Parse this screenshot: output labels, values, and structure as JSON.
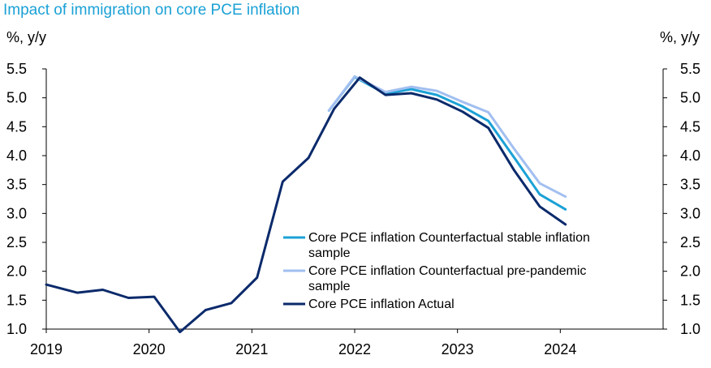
{
  "chart_data": {
    "type": "line",
    "title": "Impact of immigration on core PCE inflation",
    "ylabel_left": "%, y/y",
    "ylabel_right": "%, y/y",
    "ylim": [
      1.0,
      5.5
    ],
    "xlim": [
      2019,
      2025
    ],
    "y_ticks": [
      "1.0",
      "1.5",
      "2.0",
      "2.5",
      "3.0",
      "3.5",
      "4.0",
      "4.5",
      "5.0",
      "5.5"
    ],
    "x_ticks": [
      "2019",
      "2020",
      "2021",
      "2022",
      "2023",
      "2024"
    ],
    "grid": false,
    "legend_position": "lower-right",
    "series": [
      {
        "name": "Core PCE inflation Counterfactual stable inflation sample",
        "legend_lines": [
          "Core PCE inflation Counterfactual stable inflation",
          "sample"
        ],
        "color": "#1ba1d6",
        "x": [
          2021.75,
          2022.0,
          2022.3,
          2022.55,
          2022.8,
          2023.05,
          2023.3,
          2023.55,
          2023.8,
          2024.05
        ],
        "y": [
          4.78,
          5.36,
          5.07,
          5.15,
          5.05,
          4.85,
          4.6,
          3.97,
          3.33,
          3.07
        ]
      },
      {
        "name": "Core PCE inflation Counterfactual pre-pandemic sample",
        "legend_lines": [
          "Core PCE inflation Counterfactual pre-pandemic",
          "sample"
        ],
        "color": "#a2bff0",
        "x": [
          2021.75,
          2022.0,
          2022.3,
          2022.55,
          2022.8,
          2023.05,
          2023.3,
          2023.55,
          2023.8,
          2024.05
        ],
        "y": [
          4.78,
          5.37,
          5.1,
          5.19,
          5.12,
          4.93,
          4.75,
          4.12,
          3.52,
          3.29
        ]
      },
      {
        "name": "Core PCE inflation Actual",
        "legend_lines": [
          "Core PCE inflation Actual"
        ],
        "color": "#0b2a6b",
        "x": [
          2019.0,
          2019.3,
          2019.55,
          2019.8,
          2020.05,
          2020.3,
          2020.55,
          2020.8,
          2021.05,
          2021.3,
          2021.55,
          2021.8,
          2022.05,
          2022.3,
          2022.55,
          2022.8,
          2023.05,
          2023.3,
          2023.55,
          2023.8,
          2024.05
        ],
        "y": [
          1.77,
          1.63,
          1.68,
          1.54,
          1.56,
          0.95,
          1.33,
          1.45,
          1.89,
          3.55,
          3.96,
          4.81,
          5.35,
          5.05,
          5.08,
          4.97,
          4.76,
          4.48,
          3.75,
          3.12,
          2.81
        ]
      }
    ]
  }
}
